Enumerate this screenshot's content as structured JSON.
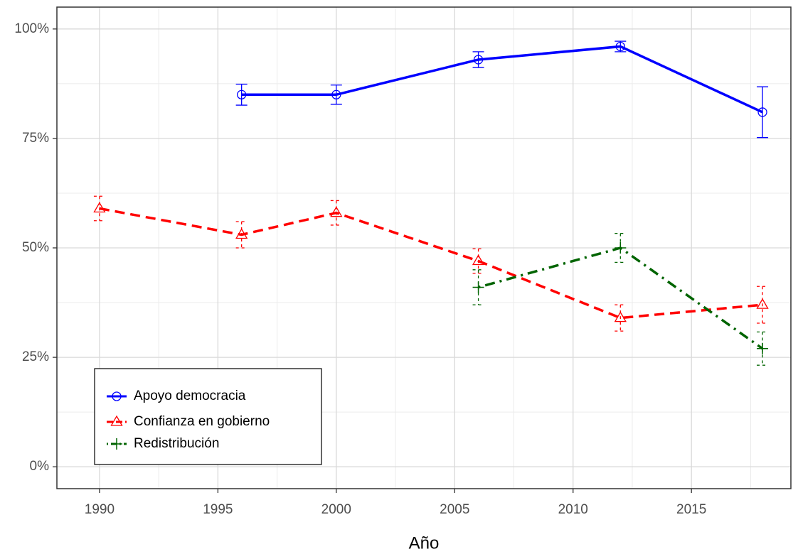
{
  "chart_data": {
    "type": "line",
    "x_label": "Año",
    "xlim": [
      1988.2,
      2019.2
    ],
    "xticks": [
      1990,
      1995,
      2000,
      2005,
      2010,
      2015
    ],
    "x_minor_ticks": [
      1992.5,
      1997.5,
      2002.5,
      2007.5,
      2012.5,
      2017.5
    ],
    "ylim": [
      -5,
      105
    ],
    "yticks": [
      {
        "value": 0,
        "label": "0%"
      },
      {
        "value": 25,
        "label": "25%"
      },
      {
        "value": 50,
        "label": "50%"
      },
      {
        "value": 75,
        "label": "75%"
      },
      {
        "value": 100,
        "label": "100%"
      }
    ],
    "y_minor_ticks": [
      12.5,
      37.5,
      62.5,
      87.5
    ],
    "grid": true,
    "legend": "bottom-left",
    "series": [
      {
        "name": "Apoyo democracia",
        "color": "#0000ff",
        "dash": "solid",
        "marker": "circle",
        "x": [
          1996,
          2000,
          2006,
          2012,
          2018
        ],
        "values": [
          85,
          85,
          93,
          96,
          81
        ],
        "errors": [
          2.4,
          2.2,
          1.8,
          1.2,
          5.8
        ]
      },
      {
        "name": "Confianza en gobierno",
        "color": "#ff0000",
        "dash": "dashed",
        "marker": "triangle",
        "x": [
          1990,
          1996,
          2000,
          2006,
          2012,
          2018
        ],
        "values": [
          59,
          53,
          58,
          47,
          34,
          37
        ],
        "errors": [
          2.8,
          3,
          2.8,
          2.8,
          3,
          4.2
        ]
      },
      {
        "name": "Redistribución",
        "color": "#006400",
        "dash": "dotdash",
        "marker": "plus",
        "x": [
          2006,
          2012,
          2018
        ],
        "values": [
          41,
          50,
          27
        ],
        "errors": [
          4,
          3.3,
          3.8
        ]
      }
    ]
  }
}
